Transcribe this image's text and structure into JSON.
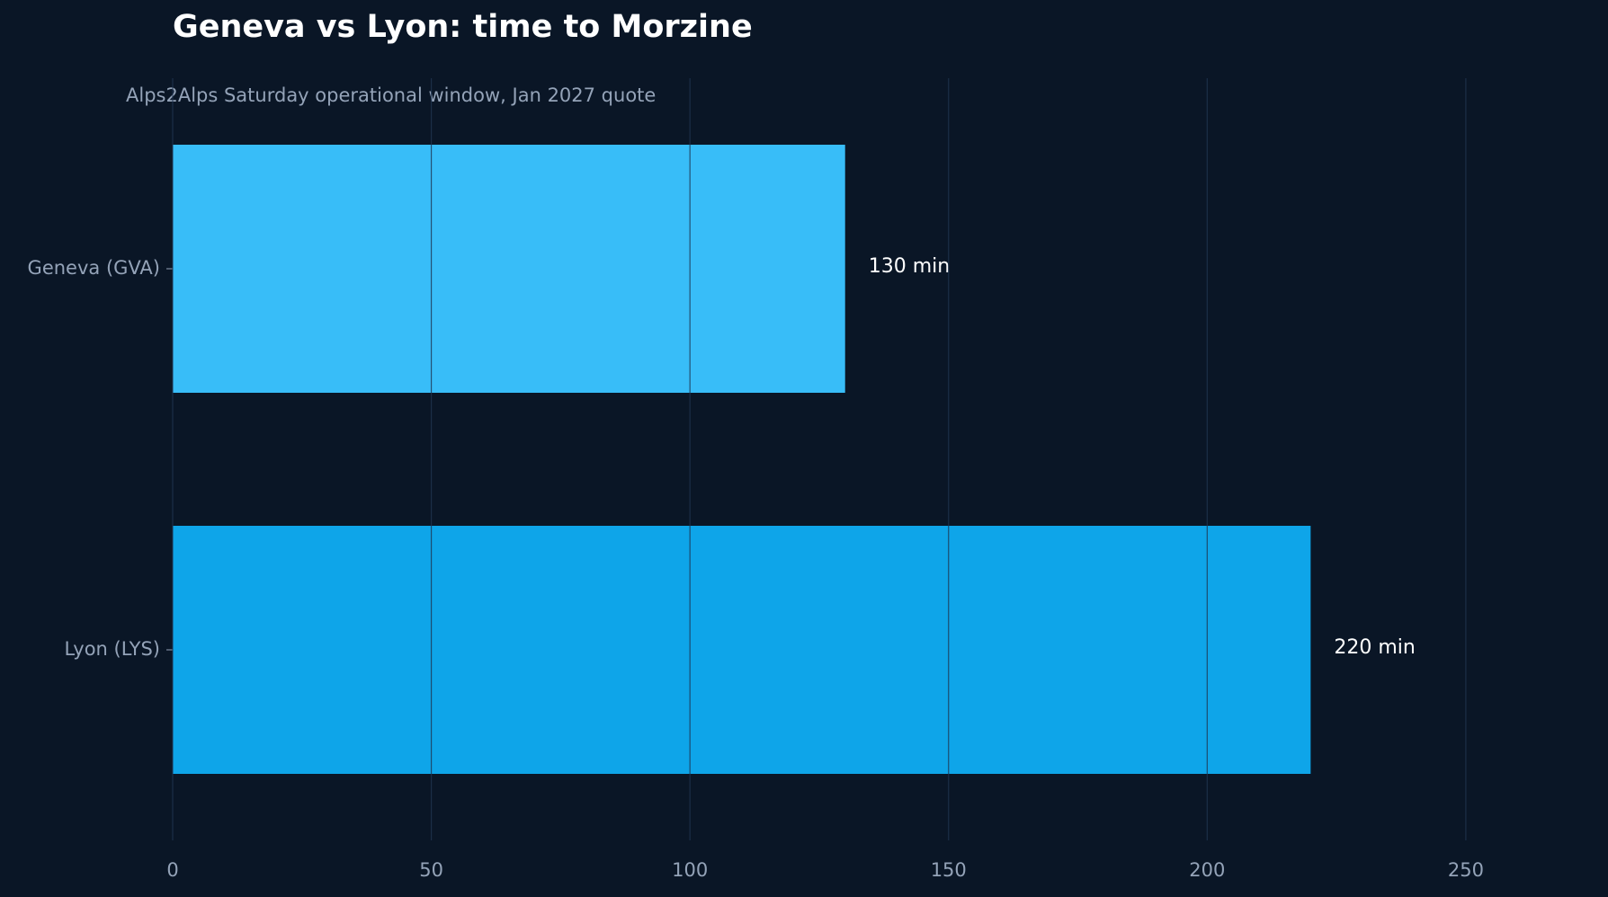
{
  "chart_data": {
    "type": "bar",
    "orientation": "horizontal",
    "title": "Geneva vs Lyon: time to Morzine",
    "subtitle": "Alps2Alps Saturday operational window, Jan 2027 quote",
    "categories": [
      "Geneva (GVA)",
      "Lyon (LYS)"
    ],
    "values": [
      130,
      220
    ],
    "value_labels": [
      "130 min",
      "220 min"
    ],
    "colors": [
      "#38bdf8",
      "#0ea5e9"
    ],
    "xlim": [
      0,
      265
    ],
    "xticks": [
      0,
      50,
      100,
      150,
      200,
      250
    ],
    "grid": true
  }
}
